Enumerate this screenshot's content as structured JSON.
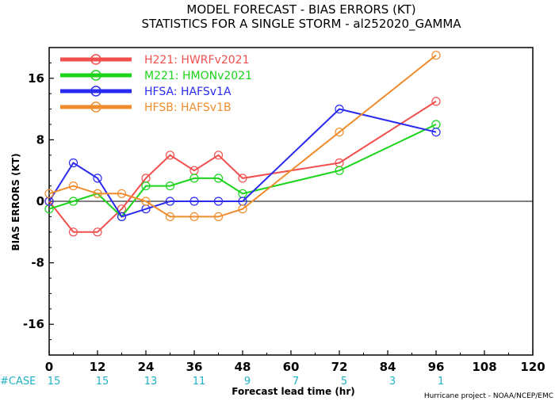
{
  "title_line1": "MODEL FORECAST - BIAS ERRORS (KT)",
  "title_line2": "STATISTICS FOR A SINGLE STORM - al252020_GAMMA",
  "ylabel": "BIAS ERRORS (KT)",
  "xlabel": "Forecast lead time (hr)",
  "credit": "Hurricane project - NOAA/NCEP/EMC",
  "case_label": "#CASE",
  "case_color": "#1fb2c4",
  "chart_data": {
    "type": "line",
    "xlim": [
      0,
      120
    ],
    "ylim": [
      -20,
      20
    ],
    "x_ticks": [
      "0",
      "12",
      "24",
      "36",
      "48",
      "60",
      "72",
      "84",
      "96",
      "108",
      "120"
    ],
    "x_tick_values": [
      0,
      12,
      24,
      36,
      48,
      60,
      72,
      84,
      96,
      108,
      120
    ],
    "y_ticks": [
      "-16",
      "-8",
      "0",
      "8",
      "16"
    ],
    "y_tick_values": [
      -16,
      -8,
      0,
      8,
      16
    ],
    "zero_line": true,
    "grid": false,
    "legend_position": "top-left",
    "case_hours": [
      0,
      12,
      24,
      36,
      48,
      60,
      72,
      84,
      96
    ],
    "case_counts": [
      "15",
      "15",
      "13",
      "11",
      "9",
      "7",
      "5",
      "3",
      "1"
    ],
    "series": [
      {
        "name": "H221: HWRFv2021",
        "color": "#f24f4f",
        "x": [
          0,
          6,
          12,
          18,
          24,
          30,
          36,
          42,
          48,
          72,
          96
        ],
        "y": [
          0,
          -4,
          -4,
          -1,
          3,
          6,
          4,
          6,
          3,
          5,
          13
        ]
      },
      {
        "name": "M221: HMONv2021",
        "color": "#1ad41a",
        "x": [
          0,
          6,
          12,
          18,
          24,
          30,
          36,
          42,
          48,
          72,
          96
        ],
        "y": [
          -1,
          0,
          1,
          -2,
          2,
          2,
          3,
          3,
          1,
          4,
          10
        ]
      },
      {
        "name": "HFSA: HAFSv1A",
        "color": "#2b2bf0",
        "x": [
          0,
          6,
          12,
          18,
          24,
          30,
          36,
          42,
          48,
          72,
          96
        ],
        "y": [
          0,
          5,
          3,
          -2,
          -1,
          0,
          0,
          0,
          0,
          12,
          9
        ]
      },
      {
        "name": "HFSB: HAFSv1B",
        "color": "#f08c2c",
        "x": [
          0,
          6,
          12,
          18,
          24,
          30,
          36,
          42,
          48,
          72,
          96
        ],
        "y": [
          1,
          2,
          1,
          1,
          0,
          -2,
          -2,
          -2,
          -1,
          9,
          19
        ]
      }
    ]
  }
}
